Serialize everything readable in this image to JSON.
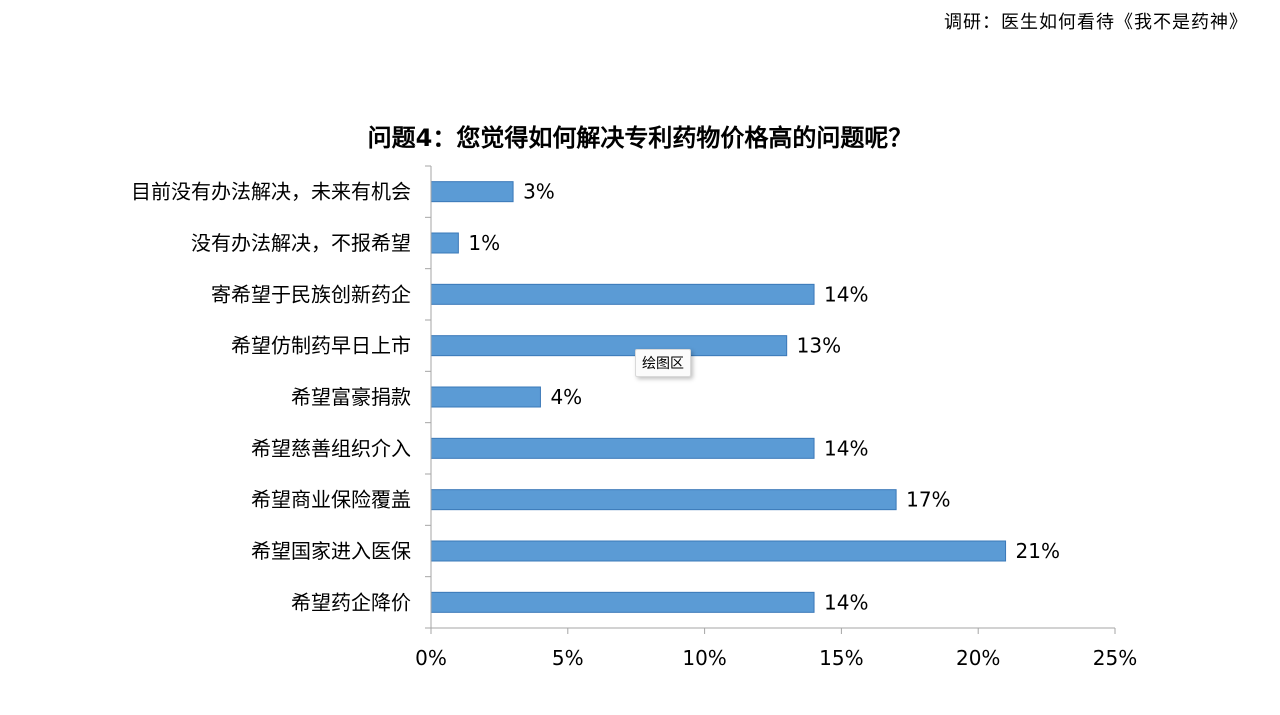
{
  "header": {
    "survey_title": "调研：医生如何看待《我不是药神》"
  },
  "tooltip": {
    "label": "绘图区"
  },
  "colors": {
    "bar_fill": "#5b9bd5",
    "bar_edge": "#3a78b8",
    "axis": "#a6a6a6"
  },
  "chart_data": {
    "type": "bar",
    "orientation": "horizontal",
    "title": "问题4：您觉得如何解决专利药物价格高的问题呢？",
    "categories": [
      "目前没有办法解决，未来有机会",
      "没有办法解决，不报希望",
      "寄希望于民族创新药企",
      "希望仿制药早日上市",
      "希望富豪捐款",
      "希望慈善组织介入",
      "希望商业保险覆盖",
      "希望国家进入医保",
      "希望药企降价"
    ],
    "values": [
      3,
      1,
      14,
      13,
      4,
      14,
      17,
      21,
      14
    ],
    "value_labels": [
      "3%",
      "1%",
      "14%",
      "13%",
      "4%",
      "14%",
      "17%",
      "21%",
      "14%"
    ],
    "xlim": [
      0,
      25
    ],
    "x_ticks": [
      0,
      5,
      10,
      15,
      20,
      25
    ],
    "x_tick_labels": [
      "0%",
      "5%",
      "10%",
      "15%",
      "20%",
      "25%"
    ],
    "grid": false,
    "legend": "none"
  }
}
